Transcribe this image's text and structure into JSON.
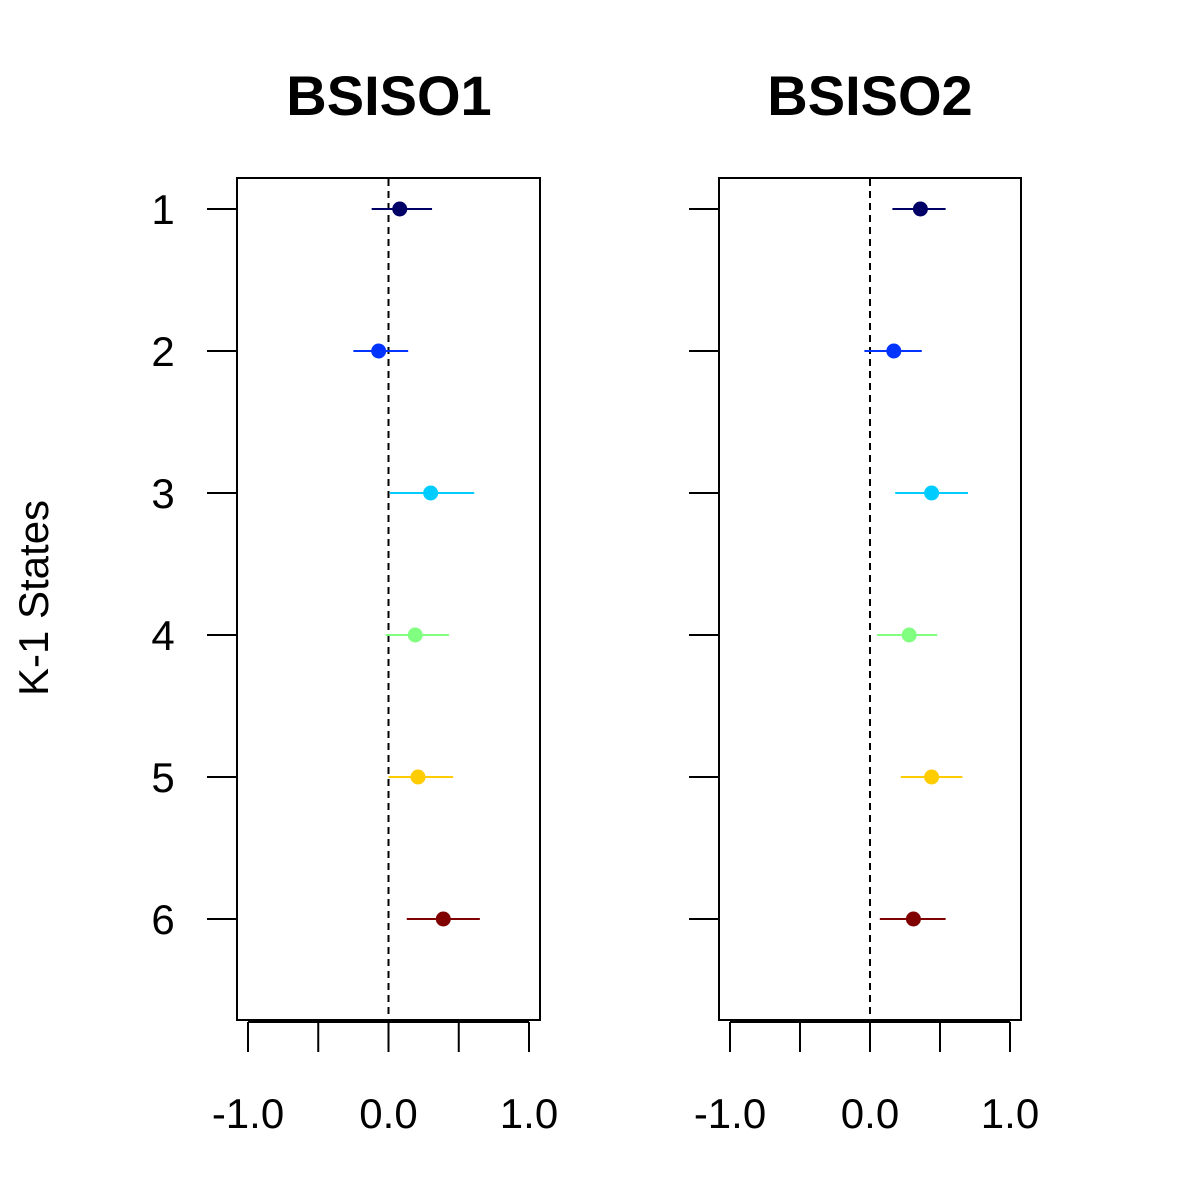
{
  "chart_data": {
    "type": "scatter",
    "subtype": "forest-plot-with-intervals",
    "ylabel": "K-1 States",
    "categories": [
      "1",
      "2",
      "3",
      "4",
      "5",
      "6"
    ],
    "xlim": [
      -1.0,
      1.0
    ],
    "x_ticks": [
      -1.0,
      -0.5,
      0.0,
      0.5,
      1.0
    ],
    "x_tick_labels": [
      "-1.0",
      "0.0",
      "1.0"
    ],
    "x_tick_label_values": [
      -1.0,
      0.0,
      1.0
    ],
    "reference_line": 0.0,
    "colors": [
      "#000066",
      "#0033ff",
      "#00ccff",
      "#80ff80",
      "#ffcc00",
      "#800000"
    ],
    "panels": [
      {
        "title": "BSISO1",
        "series": [
          {
            "state": "1",
            "estimate": 0.08,
            "lower": -0.12,
            "upper": 0.31
          },
          {
            "state": "2",
            "estimate": -0.07,
            "lower": -0.25,
            "upper": 0.14
          },
          {
            "state": "3",
            "estimate": 0.3,
            "lower": 0.01,
            "upper": 0.61
          },
          {
            "state": "4",
            "estimate": 0.19,
            "lower": -0.02,
            "upper": 0.43
          },
          {
            "state": "5",
            "estimate": 0.21,
            "lower": 0.0,
            "upper": 0.46
          },
          {
            "state": "6",
            "estimate": 0.39,
            "lower": 0.13,
            "upper": 0.65
          }
        ]
      },
      {
        "title": "BSISO2",
        "series": [
          {
            "state": "1",
            "estimate": 0.36,
            "lower": 0.16,
            "upper": 0.54
          },
          {
            "state": "2",
            "estimate": 0.17,
            "lower": -0.04,
            "upper": 0.37
          },
          {
            "state": "3",
            "estimate": 0.44,
            "lower": 0.18,
            "upper": 0.7
          },
          {
            "state": "4",
            "estimate": 0.28,
            "lower": 0.05,
            "upper": 0.48
          },
          {
            "state": "5",
            "estimate": 0.44,
            "lower": 0.22,
            "upper": 0.66
          },
          {
            "state": "6",
            "estimate": 0.31,
            "lower": 0.07,
            "upper": 0.54
          }
        ]
      }
    ]
  }
}
